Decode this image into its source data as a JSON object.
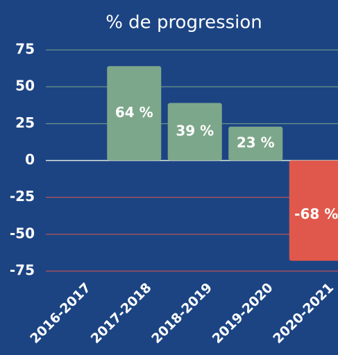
{
  "chart_data": {
    "type": "bar",
    "title": "% de progression",
    "categories": [
      "2016-2017",
      "2017-2018",
      "2018-2019",
      "2019-2020",
      "2020-2021"
    ],
    "values": [
      null,
      64,
      39,
      23,
      -68
    ],
    "value_labels": [
      null,
      "64 %",
      "39 %",
      "23 %",
      "-68 %"
    ],
    "colors": {
      "positive": "#7da78a",
      "negative": "#e0584b"
    },
    "ylim": [
      -75,
      75
    ],
    "yticks": [
      75,
      50,
      25,
      0,
      -25,
      -50,
      -75
    ],
    "grid": true
  }
}
